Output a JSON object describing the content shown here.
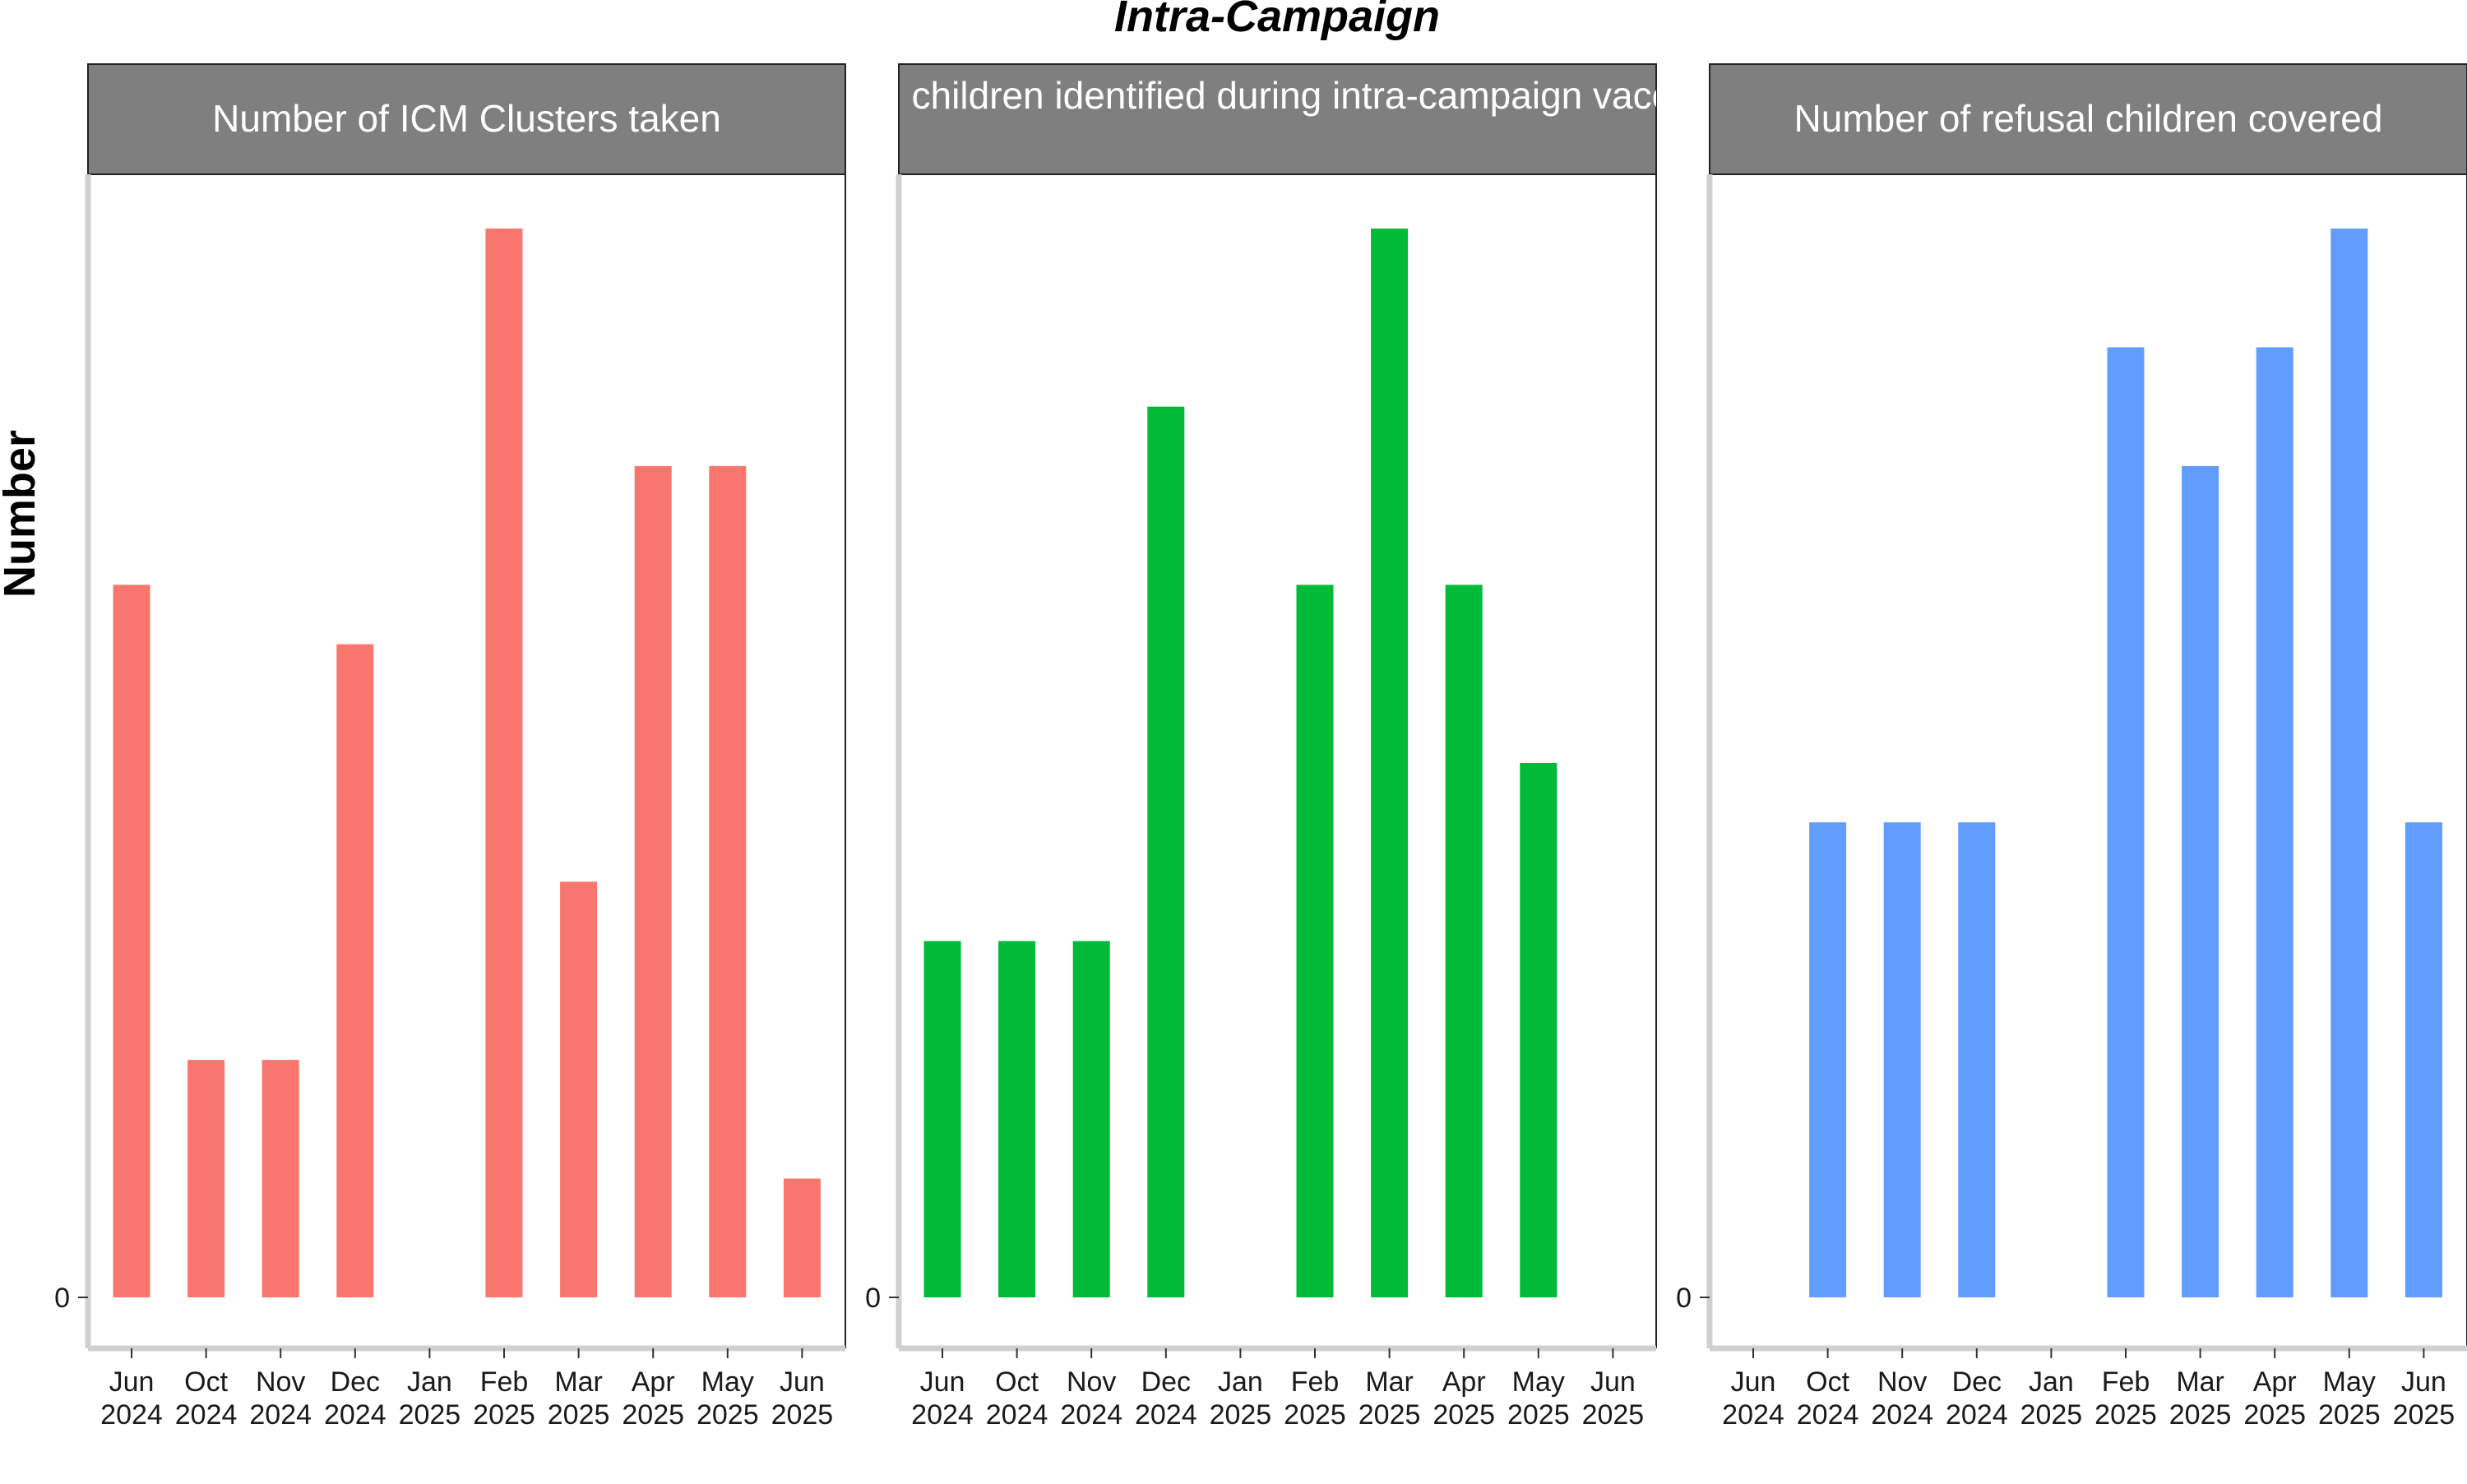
{
  "figure": {
    "title": "Intra-Campaign",
    "ylabel": "Number"
  },
  "colors": {
    "panel1": "#F8766D",
    "panel2": "#00BA38",
    "panel3": "#619CFF",
    "strip_background": "#7F7F7F",
    "strip_text": "#FFFFFF",
    "axis_line": "#D0D0D0"
  },
  "chart_data": [
    {
      "type": "bar",
      "strip_label": "Number of ICM Clusters taken",
      "categories": [
        "Jun 2024",
        "Oct 2024",
        "Nov 2024",
        "Dec 2024",
        "Jan 2025",
        "Feb 2025",
        "Mar 2025",
        "Apr 2025",
        "May 2025",
        "Jun 2025"
      ],
      "values": [
        12,
        4,
        4,
        11,
        null,
        18,
        7,
        14,
        14,
        2
      ],
      "ytick_labels": [
        "0"
      ],
      "ylim": [
        0,
        18
      ]
    },
    {
      "type": "bar",
      "strip_label": "Missed children identified during intra-campaign vaccinated",
      "categories": [
        "Jun 2024",
        "Oct 2024",
        "Nov 2024",
        "Dec 2024",
        "Jan 2025",
        "Feb 2025",
        "Mar 2025",
        "Apr 2025",
        "May 2025",
        "Jun 2025"
      ],
      "values": [
        6,
        6,
        6,
        15,
        null,
        12,
        18,
        12,
        9,
        null
      ],
      "ytick_labels": [
        "0"
      ],
      "ylim": [
        0,
        18
      ]
    },
    {
      "type": "bar",
      "strip_label": "Number of refusal children covered",
      "categories": [
        "Jun 2024",
        "Oct 2024",
        "Nov 2024",
        "Dec 2024",
        "Jan 2025",
        "Feb 2025",
        "Mar 2025",
        "Apr 2025",
        "May 2025",
        "Jun 2025"
      ],
      "values": [
        null,
        8,
        8,
        8,
        null,
        16,
        14,
        16,
        18,
        8
      ],
      "ytick_labels": [
        "0"
      ],
      "ylim": [
        0,
        18
      ]
    }
  ]
}
